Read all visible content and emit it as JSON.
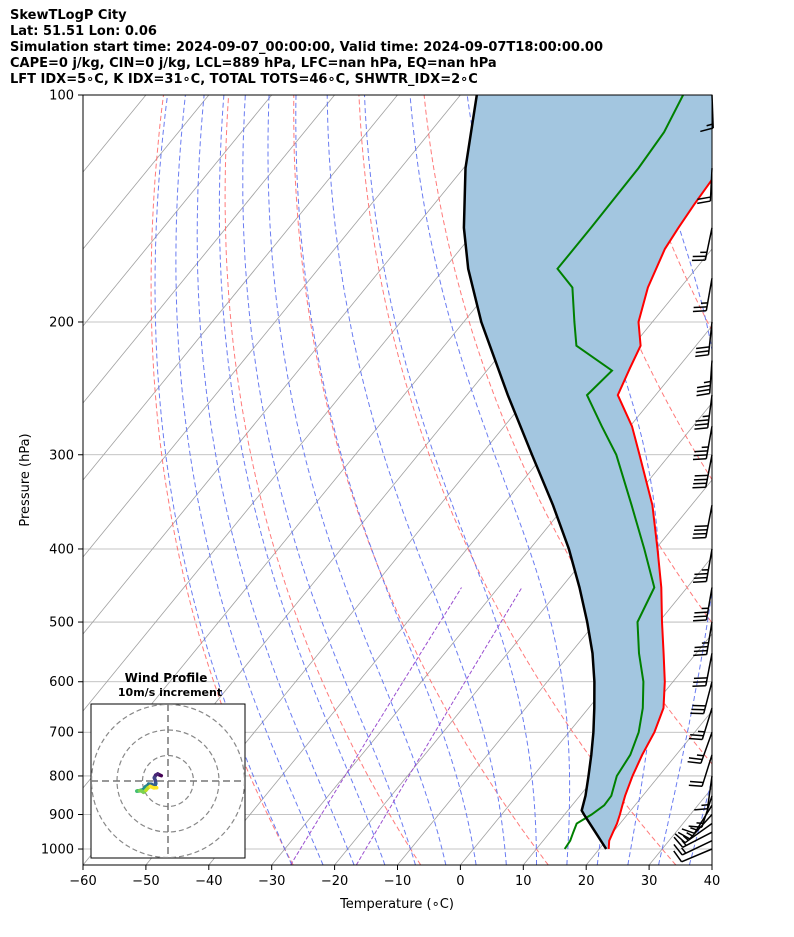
{
  "header": {
    "line1": "SkewTLogP City",
    "line2": "Lat: 51.51   Lon: 0.06",
    "line3": "Simulation start time: 2024-09-07_00:00:00, Valid time: 2024-09-07T18:00:00.00",
    "line4": "CAPE=0 j/kg, CIN=0 j/kg, LCL=889 hPa, LFC=nan hPa, EQ=nan hPa",
    "line5": "LFT IDX=5∘C, K IDX=31∘C, TOTAL TOTS=46∘C, SHWTR_IDX=2∘C"
  },
  "chart_data": {
    "type": "line",
    "chart": "skew-t log-p",
    "xlabel": "Temperature (∘C)",
    "ylabel": "Pressure (hPa)",
    "x_ticks": [
      -60,
      -50,
      -40,
      -30,
      -20,
      -10,
      0,
      10,
      20,
      30,
      40
    ],
    "y_ticks": [
      100,
      200,
      300,
      400,
      500,
      600,
      700,
      800,
      900,
      1000
    ],
    "xlim": [
      -60,
      40
    ],
    "ylim": [
      1050,
      100
    ],
    "grid": true,
    "colors": {
      "temperature": "#ff0000",
      "dewpoint": "#008000",
      "parcel": "#000000",
      "shade": "#a3c6e0",
      "dry_adiabats": "#ff6b6b",
      "moist_adiabats": "#5a6ef0",
      "mixing_ratio": "#9a4fd0",
      "isotherms": "#a0a0a0"
    },
    "series": [
      {
        "id": "temperature",
        "pressure": [
          1000,
          975,
          950,
          925,
          900,
          875,
          850,
          800,
          750,
          700,
          650,
          600,
          550,
          500,
          450,
          400,
          350,
          300,
          275,
          250,
          230,
          215,
          200,
          180,
          160,
          150,
          140,
          125,
          112,
          100
        ],
        "values": [
          21.5,
          20.5,
          20.0,
          19.5,
          18.8,
          18.0,
          17.2,
          15.8,
          14.6,
          13.6,
          11.9,
          8.7,
          4.8,
          0.5,
          -4.1,
          -9.7,
          -16.2,
          -24.8,
          -29.7,
          -36.0,
          -37.6,
          -38.8,
          -42.2,
          -45.2,
          -47.5,
          -48.1,
          -48.6,
          -49.2,
          -50.6,
          -50.9
        ]
      },
      {
        "id": "dewpoint",
        "pressure": [
          1000,
          975,
          950,
          925,
          900,
          875,
          850,
          800,
          750,
          700,
          650,
          600,
          550,
          500,
          450,
          400,
          350,
          300,
          275,
          250,
          232,
          215,
          200,
          180,
          170,
          150,
          125,
          112,
          100
        ],
        "values": [
          14.5,
          14.3,
          13.7,
          13.1,
          14.3,
          15.1,
          15.0,
          13.3,
          12.7,
          11.1,
          8.6,
          5.3,
          0.9,
          -3.4,
          -5.2,
          -11.8,
          -19.5,
          -28.5,
          -34.5,
          -40.9,
          -40.1,
          -49.0,
          -52.4,
          -57.2,
          -62.0,
          -62.0,
          -62.2,
          -62.8,
          -64.6
        ]
      },
      {
        "id": "parcel",
        "pressure": [
          1000,
          950,
          900,
          889,
          850,
          800,
          750,
          700,
          650,
          600,
          550,
          500,
          450,
          400,
          350,
          300,
          250,
          200,
          170,
          150,
          125,
          100
        ],
        "values": [
          21.1,
          17.2,
          13.1,
          12.2,
          10.9,
          8.8,
          6.5,
          3.9,
          0.9,
          -2.5,
          -6.5,
          -11.4,
          -17.1,
          -23.8,
          -32.0,
          -41.9,
          -53.5,
          -67.2,
          -76.2,
          -82.2,
          -89.7,
          -97.4
        ]
      }
    ],
    "winds": {
      "label": "Wind Profile",
      "increment_label": "10m/s increment",
      "pressure": [
        1000,
        975,
        950,
        925,
        900,
        875,
        850,
        800,
        750,
        700,
        650,
        600,
        550,
        500,
        450,
        400,
        350,
        300,
        275,
        250,
        225,
        200,
        175,
        150,
        125,
        100
      ],
      "u": [
        5.0,
        6.1,
        7.0,
        7.0,
        6.0,
        4.3,
        2.4,
        1.2,
        3.2,
        4.2,
        3.8,
        3.7,
        3.0,
        2.8,
        3.1,
        3.3,
        3.9,
        3.8,
        3.3,
        2.3,
        1.2,
        1.6,
        2.3,
        2.4,
        0.5,
        -0.3
      ],
      "v": [
        2.1,
        2.9,
        3.6,
        5.0,
        6.6,
        6.9,
        7.5,
        8.8,
        10.2,
        11.7,
        12.3,
        14.2,
        15.6,
        16.8,
        17.9,
        19.0,
        20.3,
        19.8,
        18.8,
        17.6,
        17.0,
        15.1,
        13.0,
        11.5,
        10.0,
        8.3
      ]
    }
  }
}
